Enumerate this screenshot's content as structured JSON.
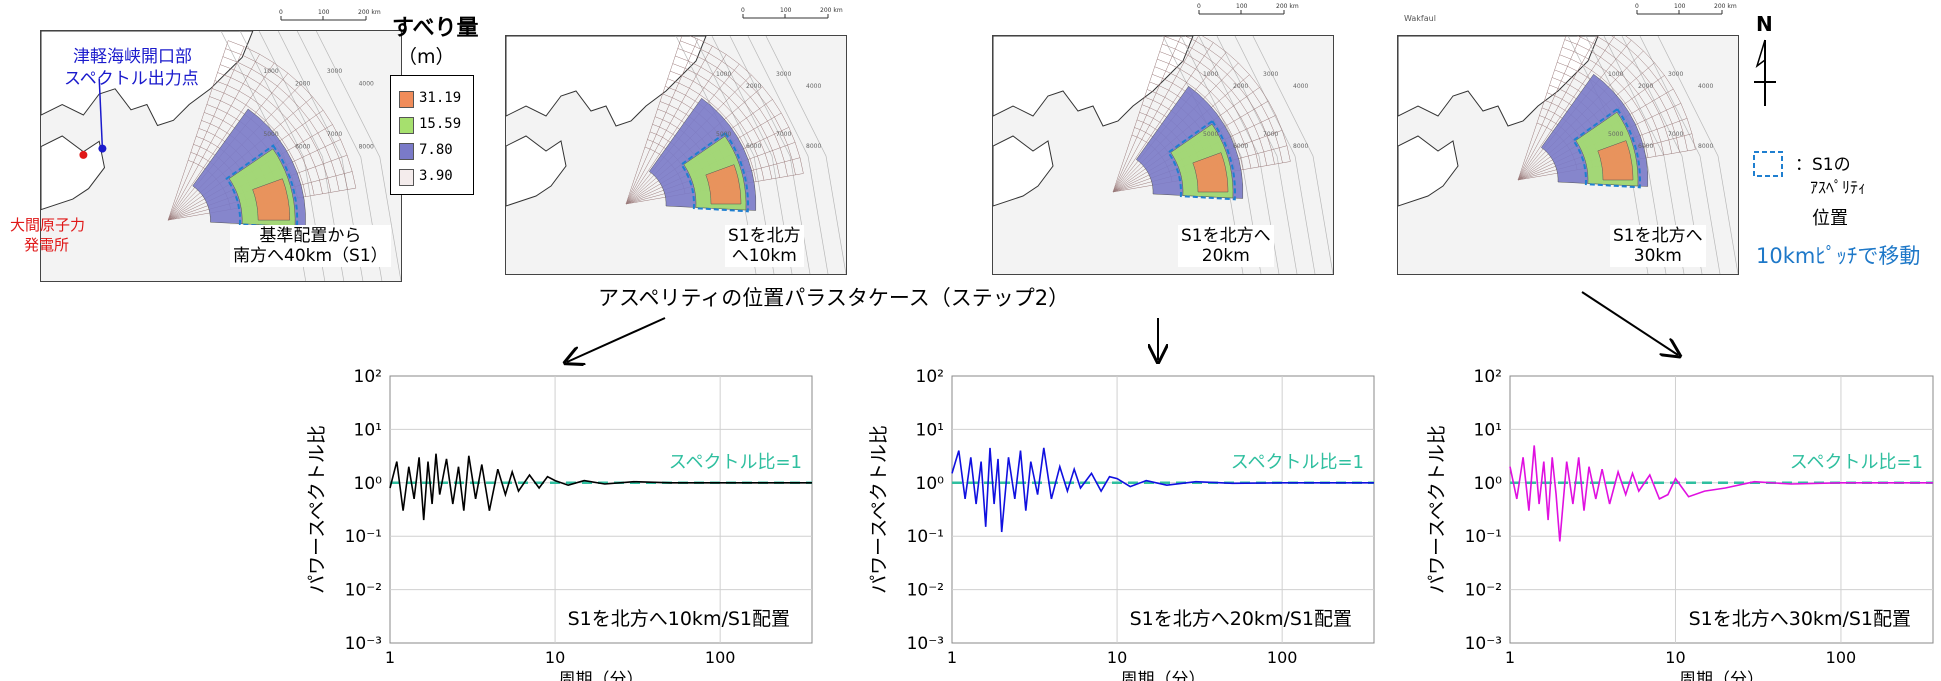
{
  "colors": {
    "slip_high": "#f08c5a",
    "slip_mid": "#a6e06e",
    "slip_low": "#7a7ac8",
    "slip_min": "#f4ecec",
    "asperity_outline": "#1f7fd0",
    "point_blue": "#1a1acc",
    "point_red": "#e01818",
    "ratio_line": "#2fbf9f",
    "series_1": "#000000",
    "series_2": "#1010e0",
    "series_3": "#e010e0",
    "note_blue": "#1a1acc",
    "note_red": "#e01818",
    "accent_move": "#1e78c8"
  },
  "legend": {
    "title": "すべり量",
    "unit": "（m）",
    "levels": [
      "31.19",
      "15.59",
      "7.80",
      "3.90"
    ]
  },
  "map0": {
    "outlet_label_1": "津軽海峡開口部",
    "outlet_label_2": "スペクトル出力点",
    "plant_label_1": "大間原子力",
    "plant_label_2": "発電所",
    "caption_1": "基準配置から",
    "caption_2": "南方へ40km（S1）"
  },
  "map1": {
    "caption_1": "S1を北方",
    "caption_2": "へ10km"
  },
  "map2": {
    "caption_1": "S1を北方へ",
    "caption_2": "20km"
  },
  "map3": {
    "caption_1": "S1を北方へ",
    "caption_2": "30km"
  },
  "scale_bar": {
    "t0": "0",
    "t1": "100",
    "t2": "200 km"
  },
  "map_corner_label": "Wakfaul",
  "contour_labels": [
    "1000",
    "2000",
    "3000",
    "4000",
    "5000",
    "6000",
    "7000",
    "8000"
  ],
  "section_title": "アスペリティの位置パラスタケース（ステップ2）",
  "north": {
    "label": "N"
  },
  "side_legend": {
    "item_1": "：S1の",
    "item_2": "ｱｽﾍﾟﾘﾃｨ",
    "item_3": "位置",
    "note": "10kmﾋﾟｯﾁで移動"
  },
  "chart_data": [
    {
      "type": "line",
      "ylabel": "パワースペクトル比",
      "xlabel": "周期（分）",
      "x_ticks": [
        "1",
        "10",
        "100"
      ],
      "y_ticks": [
        "10²",
        "10¹",
        "10⁰",
        "10⁻¹",
        "10⁻²",
        "10⁻³"
      ],
      "xlim": [
        1,
        360
      ],
      "ylim": [
        0.001,
        100
      ],
      "x_scale": "log",
      "y_scale": "log",
      "grid": true,
      "annotation": "スペクトル比=1",
      "caption": "S1を北方へ10km/S1配置",
      "series_color": "#000000",
      "x": [
        1.0,
        1.1,
        1.2,
        1.3,
        1.4,
        1.5,
        1.6,
        1.7,
        1.8,
        1.9,
        2.0,
        2.2,
        2.4,
        2.6,
        2.8,
        3.0,
        3.3,
        3.6,
        4.0,
        4.5,
        5.0,
        5.5,
        6.0,
        7.0,
        8.0,
        9.0,
        10,
        12,
        15,
        20,
        30,
        50,
        100,
        200,
        360
      ],
      "y": [
        0.8,
        2.5,
        0.3,
        2.0,
        0.5,
        3.0,
        0.2,
        2.5,
        0.4,
        3.5,
        0.6,
        2.8,
        0.4,
        2.0,
        0.3,
        3.2,
        0.5,
        2.2,
        0.3,
        1.8,
        0.6,
        1.6,
        0.7,
        1.4,
        0.8,
        1.3,
        1.1,
        0.9,
        1.1,
        0.95,
        1.05,
        1.0,
        1.0,
        1.0,
        1.0
      ]
    },
    {
      "type": "line",
      "ylabel": "パワースペクトル比",
      "xlabel": "周期（分）",
      "x_ticks": [
        "1",
        "10",
        "100"
      ],
      "y_ticks": [
        "10²",
        "10¹",
        "10⁰",
        "10⁻¹",
        "10⁻²",
        "10⁻³"
      ],
      "xlim": [
        1,
        360
      ],
      "ylim": [
        0.001,
        100
      ],
      "x_scale": "log",
      "y_scale": "log",
      "grid": true,
      "annotation": "スペクトル比=1",
      "caption": "S1を北方へ20km/S1配置",
      "series_color": "#1010e0",
      "x": [
        1.0,
        1.1,
        1.2,
        1.3,
        1.4,
        1.5,
        1.6,
        1.7,
        1.8,
        1.9,
        2.0,
        2.2,
        2.4,
        2.6,
        2.8,
        3.0,
        3.3,
        3.6,
        4.0,
        4.5,
        5.0,
        5.5,
        6.0,
        7.0,
        8.0,
        9.0,
        10,
        12,
        15,
        20,
        30,
        50,
        100,
        200,
        360
      ],
      "y": [
        1.5,
        4.0,
        0.5,
        3.0,
        0.4,
        2.5,
        0.15,
        4.5,
        0.4,
        2.8,
        0.12,
        3.0,
        0.5,
        4.0,
        0.3,
        2.5,
        0.6,
        4.5,
        0.5,
        2.0,
        0.7,
        1.8,
        0.8,
        1.5,
        0.7,
        1.3,
        1.2,
        0.85,
        1.1,
        0.9,
        1.05,
        0.98,
        1.0,
        1.0,
        1.0
      ]
    },
    {
      "type": "line",
      "ylabel": "パワースペクトル比",
      "xlabel": "周期（分）",
      "x_ticks": [
        "1",
        "10",
        "100"
      ],
      "y_ticks": [
        "10²",
        "10¹",
        "10⁰",
        "10⁻¹",
        "10⁻²",
        "10⁻³"
      ],
      "xlim": [
        1,
        360
      ],
      "ylim": [
        0.001,
        100
      ],
      "x_scale": "log",
      "y_scale": "log",
      "grid": true,
      "annotation": "スペクトル比=1",
      "caption": "S1を北方へ30km/S1配置",
      "series_color": "#e010e0",
      "x": [
        1.0,
        1.1,
        1.2,
        1.3,
        1.4,
        1.5,
        1.6,
        1.7,
        1.8,
        1.9,
        2.0,
        2.2,
        2.4,
        2.6,
        2.8,
        3.0,
        3.3,
        3.6,
        4.0,
        4.5,
        5.0,
        5.5,
        6.0,
        7.0,
        8.0,
        9.0,
        10,
        12,
        15,
        20,
        30,
        50,
        100,
        200,
        360
      ],
      "y": [
        2.0,
        0.5,
        3.0,
        0.3,
        5.0,
        0.4,
        2.5,
        0.2,
        3.0,
        0.6,
        0.08,
        2.5,
        0.4,
        3.0,
        0.3,
        2.0,
        0.5,
        1.8,
        0.4,
        1.6,
        0.6,
        1.5,
        0.7,
        1.4,
        0.5,
        0.6,
        1.2,
        0.55,
        0.7,
        0.8,
        1.05,
        0.95,
        1.0,
        1.0,
        1.0
      ]
    }
  ]
}
